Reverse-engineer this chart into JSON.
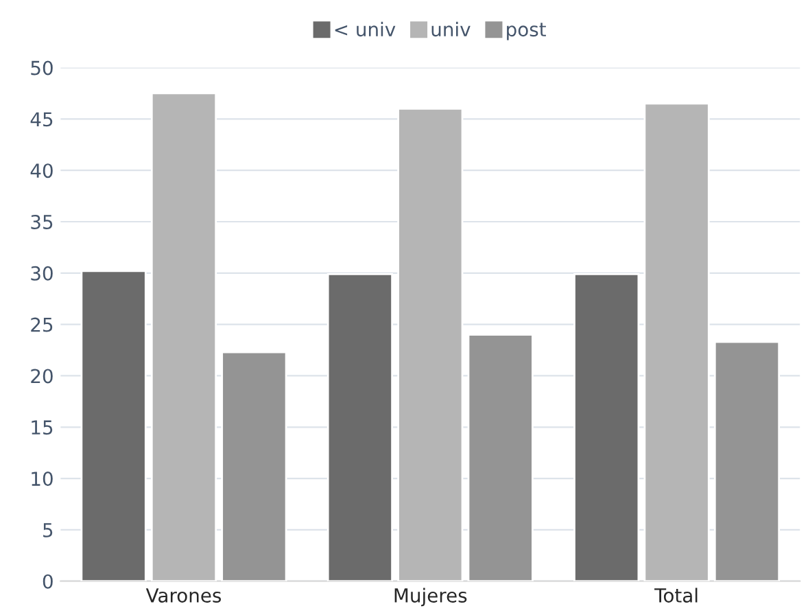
{
  "chart_data": {
    "type": "bar",
    "categories": [
      "Varones",
      "Mujeres",
      "Total"
    ],
    "series": [
      {
        "name": "< univ",
        "color": "#6b6b6b",
        "values": [
          30.2,
          29.9,
          29.9
        ]
      },
      {
        "name": "univ",
        "color": "#b5b5b5",
        "values": [
          47.5,
          46.0,
          46.5
        ]
      },
      {
        "name": "post",
        "color": "#949494",
        "values": [
          22.3,
          24.0,
          23.3
        ]
      }
    ],
    "ylim": [
      0,
      50
    ],
    "yticks": [
      0,
      5,
      10,
      15,
      20,
      25,
      30,
      35,
      40,
      45,
      50
    ],
    "grid": "y",
    "legend": "top"
  }
}
